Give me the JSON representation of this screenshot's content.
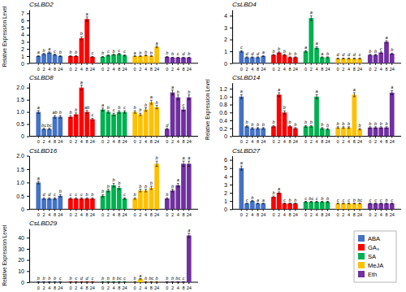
{
  "chart_data": [
    {
      "type": "bar",
      "title": "CsLBD2",
      "ylabel": "Relative Expression Level",
      "legend": "lower right",
      "categories": [
        "0",
        "2",
        "4",
        "8",
        "24"
      ],
      "ylim": [
        0,
        7.5
      ],
      "yticks": [
        0,
        1,
        2,
        3,
        4,
        5,
        6,
        7
      ],
      "series": [
        {
          "name": "ABA",
          "color": "#4472C4",
          "values": [
            1.0,
            1.3,
            1.5,
            1.2,
            1.0
          ],
          "errors": [
            0.06,
            0.08,
            0.1,
            0.08,
            0.06
          ],
          "letters": [
            "a",
            "b",
            "a",
            "c",
            "b"
          ]
        },
        {
          "name": "GA₃",
          "color": "#FF0000",
          "values": [
            1.0,
            1.0,
            3.5,
            6.2,
            0.9
          ],
          "errors": [
            0.06,
            0.06,
            0.2,
            0.3,
            0.06
          ],
          "letters": [
            "b",
            "b",
            "b",
            "a",
            "c"
          ]
        },
        {
          "name": "SA",
          "color": "#00B050",
          "values": [
            0.9,
            1.1,
            1.2,
            1.3,
            1.1
          ],
          "errors": [
            0.05,
            0.07,
            0.08,
            0.09,
            0.07
          ],
          "letters": [
            "b",
            "c",
            "b",
            "c",
            "c"
          ]
        },
        {
          "name": "MeJA",
          "color": "#FFC000",
          "values": [
            1.0,
            1.0,
            1.1,
            1.0,
            2.3
          ],
          "errors": [
            0.05,
            0.05,
            0.06,
            0.05,
            0.12
          ],
          "letters": [
            "a",
            "b",
            "b",
            "b",
            "a"
          ]
        },
        {
          "name": "Eth",
          "color": "#7030A0",
          "values": [
            0.9,
            0.8,
            0.8,
            0.8,
            0.8
          ],
          "errors": [
            0.05,
            0.04,
            0.04,
            0.04,
            0.04
          ],
          "letters": [
            "b",
            "b",
            "c",
            "d",
            "b"
          ]
        }
      ]
    },
    {
      "type": "bar",
      "title": "CsLBD4",
      "categories": [
        "0",
        "2",
        "4",
        "8",
        "24"
      ],
      "ylim": [
        0,
        4.5
      ],
      "yticks": [
        0,
        1,
        2,
        3,
        4
      ],
      "series": [
        {
          "name": "ABA",
          "color": "#4472C4",
          "values": [
            1.0,
            0.5,
            0.5,
            0.5,
            0.6
          ],
          "errors": [
            0.06,
            0.04,
            0.04,
            0.04,
            0.04
          ],
          "letters": [
            "c",
            "d",
            "d",
            "d",
            "a"
          ]
        },
        {
          "name": "GA₃",
          "color": "#FF0000",
          "values": [
            0.7,
            0.9,
            0.7,
            0.5,
            0.5
          ],
          "errors": [
            0.05,
            0.06,
            0.05,
            0.04,
            0.04
          ],
          "letters": [
            "b",
            "b",
            "b",
            "b",
            "b"
          ]
        },
        {
          "name": "SA",
          "color": "#00B050",
          "values": [
            1.0,
            3.8,
            1.3,
            0.5,
            0.5
          ],
          "errors": [
            0.06,
            0.2,
            0.09,
            0.04,
            0.04
          ],
          "letters": [
            "a",
            "a",
            "a",
            "a",
            "b"
          ]
        },
        {
          "name": "MeJA",
          "color": "#FFC000",
          "values": [
            0.4,
            0.4,
            0.4,
            0.4,
            0.4
          ],
          "errors": [
            0.04,
            0.04,
            0.04,
            0.04,
            0.04
          ],
          "letters": [
            "d",
            "d",
            "d",
            "d",
            "c"
          ]
        },
        {
          "name": "Eth",
          "color": "#7030A0",
          "values": [
            0.7,
            0.7,
            0.9,
            1.8,
            0.8
          ],
          "errors": [
            0.05,
            0.05,
            0.06,
            0.1,
            0.05
          ],
          "letters": [
            "b",
            "b",
            "c",
            "a",
            "b"
          ]
        }
      ]
    },
    {
      "type": "bar",
      "title": "CsLBD8",
      "categories": [
        "0",
        "2",
        "4",
        "8",
        "24"
      ],
      "ylim": [
        0,
        2.2
      ],
      "yticks": [
        0,
        0.5,
        {
          "value": 1.0,
          "label": "1.0"
        },
        1.5,
        {
          "value": 2.0,
          "label": "2.0"
        }
      ],
      "series": [
        {
          "name": "ABA",
          "color": "#4472C4",
          "values": [
            1.0,
            0.3,
            0.3,
            0.8,
            0.8
          ],
          "errors": [
            0.06,
            0.03,
            0.03,
            0.05,
            0.05
          ],
          "letters": [
            "a",
            "bc",
            "bc",
            "ab",
            "b"
          ]
        },
        {
          "name": "GA₃",
          "color": "#FF0000",
          "values": [
            0.8,
            0.9,
            2.0,
            1.0,
            0.7
          ],
          "errors": [
            0.05,
            0.06,
            0.1,
            0.06,
            0.04
          ],
          "letters": [
            "b",
            "b",
            "a",
            "ab",
            "c"
          ]
        },
        {
          "name": "SA",
          "color": "#00B050",
          "values": [
            1.1,
            1.0,
            0.9,
            1.0,
            1.0
          ],
          "errors": [
            0.06,
            0.05,
            0.05,
            0.05,
            0.05
          ],
          "letters": [
            "a",
            "b",
            "c",
            "b",
            "c"
          ]
        },
        {
          "name": "MeJA",
          "color": "#FFC000",
          "values": [
            1.0,
            0.9,
            1.1,
            1.4,
            1.2
          ],
          "errors": [
            0.05,
            0.05,
            0.07,
            0.08,
            0.07
          ],
          "letters": [
            "b",
            "b",
            "b",
            "a",
            "b"
          ]
        },
        {
          "name": "Eth",
          "color": "#7030A0",
          "values": [
            0.3,
            1.8,
            1.6,
            1.1,
            1.6
          ],
          "errors": [
            0.03,
            0.1,
            0.1,
            0.07,
            0.1
          ],
          "letters": [
            "d",
            "a",
            "b",
            "c",
            "b"
          ]
        }
      ]
    },
    {
      "type": "bar",
      "title": "CsLBD14",
      "ylabel": "Relative Expression Level",
      "categories": [
        "0",
        "2",
        "4",
        "8",
        "24"
      ],
      "ylim": [
        0,
        1.35
      ],
      "yticks": [
        0,
        0.2,
        0.4,
        0.6,
        0.8,
        {
          "value": 1.0,
          "label": "1.0"
        },
        1.2
      ],
      "series": [
        {
          "name": "ABA",
          "color": "#4472C4",
          "values": [
            1.0,
            0.25,
            0.2,
            0.2,
            0.2
          ],
          "errors": [
            0.05,
            0.02,
            0.02,
            0.02,
            0.02
          ],
          "letters": [
            "a",
            "b",
            "b",
            "b",
            "b"
          ]
        },
        {
          "name": "GA₃",
          "color": "#FF0000",
          "values": [
            0.25,
            1.05,
            0.6,
            0.25,
            0.2
          ],
          "errors": [
            0.02,
            0.05,
            0.04,
            0.02,
            0.02
          ],
          "letters": [
            "b",
            "a",
            "b",
            "b",
            "b"
          ]
        },
        {
          "name": "SA",
          "color": "#00B050",
          "values": [
            0.25,
            0.25,
            1.0,
            0.2,
            0.18
          ],
          "errors": [
            0.02,
            0.02,
            0.05,
            0.02,
            0.02
          ],
          "letters": [
            "b",
            "b",
            "a",
            "b",
            "b"
          ]
        },
        {
          "name": "MeJA",
          "color": "#FFC000",
          "values": [
            0.22,
            0.22,
            0.22,
            1.05,
            0.18
          ],
          "errors": [
            0.02,
            0.02,
            0.02,
            0.05,
            0.02
          ],
          "letters": [
            "b",
            "b",
            "b",
            "a",
            "b"
          ]
        },
        {
          "name": "Eth",
          "color": "#7030A0",
          "values": [
            0.22,
            0.22,
            0.22,
            0.22,
            1.1
          ],
          "errors": [
            0.02,
            0.02,
            0.02,
            0.02,
            0.05
          ],
          "letters": [
            "b",
            "b",
            "b",
            "b",
            "a"
          ]
        }
      ]
    },
    {
      "type": "bar",
      "title": "CsLBD16",
      "categories": [
        "0",
        "2",
        "4",
        "8",
        "24"
      ],
      "ylim": [
        0,
        2.0
      ],
      "yticks": [
        0,
        0.5,
        {
          "value": 1.0,
          "label": "1.0"
        },
        1.5,
        {
          "value": 2.0,
          "label": "2.0"
        }
      ],
      "series": [
        {
          "name": "ABA",
          "color": "#4472C4",
          "values": [
            1.0,
            0.4,
            0.4,
            0.4,
            0.5
          ],
          "errors": [
            0.05,
            0.03,
            0.03,
            0.03,
            0.04
          ],
          "letters": [
            "a",
            "d",
            "d",
            "c",
            "b"
          ]
        },
        {
          "name": "GA₃",
          "color": "#FF0000",
          "values": [
            0.4,
            0.4,
            0.4,
            0.4,
            0.4
          ],
          "errors": [
            0.03,
            0.03,
            0.03,
            0.03,
            0.03
          ],
          "letters": [
            "c",
            "c",
            "c",
            "b",
            "b"
          ]
        },
        {
          "name": "SA",
          "color": "#00B050",
          "values": [
            0.5,
            0.7,
            0.9,
            0.8,
            0.4
          ],
          "errors": [
            0.04,
            0.05,
            0.07,
            0.06,
            0.03
          ],
          "letters": [
            "b",
            "b",
            "b",
            "b",
            "c"
          ]
        },
        {
          "name": "MeJA",
          "color": "#FFC000",
          "values": [
            0.4,
            0.7,
            0.7,
            0.8,
            1.7
          ],
          "errors": [
            0.03,
            0.05,
            0.05,
            0.06,
            0.1
          ],
          "letters": [
            "b",
            "b",
            "b",
            "b",
            "b"
          ]
        },
        {
          "name": "Eth",
          "color": "#7030A0",
          "values": [
            0.4,
            0.7,
            0.9,
            1.7,
            1.7
          ],
          "errors": [
            0.03,
            0.05,
            0.07,
            0.1,
            0.1
          ],
          "letters": [
            "b",
            "b",
            "a",
            "a",
            "a"
          ]
        }
      ]
    },
    {
      "type": "bar",
      "title": "CsLBD27",
      "categories": [
        "0",
        "2",
        "4",
        "8",
        "24"
      ],
      "ylim": [
        0,
        6.5
      ],
      "yticks": [
        0,
        1,
        2,
        3,
        4,
        5,
        6
      ],
      "series": [
        {
          "name": "ABA",
          "color": "#4472C4",
          "values": [
            5.0,
            0.7,
            1.0,
            0.7,
            0.7
          ],
          "errors": [
            0.25,
            0.05,
            0.06,
            0.05,
            0.05
          ],
          "letters": [
            "a",
            "c",
            "b",
            "a",
            "a"
          ]
        },
        {
          "name": "GA₃",
          "color": "#FF0000",
          "values": [
            1.5,
            2.0,
            0.7,
            0.7,
            0.7
          ],
          "errors": [
            0.1,
            0.12,
            0.05,
            0.05,
            0.05
          ],
          "letters": [
            "b",
            "a",
            "c",
            "b",
            "b"
          ]
        },
        {
          "name": "SA",
          "color": "#00B050",
          "values": [
            0.9,
            0.9,
            0.9,
            0.9,
            0.9
          ],
          "errors": [
            0.06,
            0.06,
            0.06,
            0.06,
            0.06
          ],
          "letters": [
            "c",
            "bc",
            "c",
            "b",
            "b"
          ]
        },
        {
          "name": "MeJA",
          "color": "#FFC000",
          "values": [
            0.7,
            0.7,
            0.7,
            0.7,
            0.7
          ],
          "errors": [
            0.05,
            0.05,
            0.05,
            0.05,
            0.05
          ],
          "letters": [
            "c",
            "c",
            "c",
            "b",
            "bc"
          ]
        },
        {
          "name": "Eth",
          "color": "#7030A0",
          "values": [
            0.7,
            0.7,
            0.7,
            0.7,
            0.7
          ],
          "errors": [
            0.05,
            0.05,
            0.05,
            0.05,
            0.05
          ],
          "letters": [
            "c",
            "c",
            "c",
            "b",
            "c"
          ]
        }
      ]
    },
    {
      "type": "bar",
      "title": "CsLBD29",
      "ylabel": "Relative Expression Level",
      "categories": [
        "0",
        "2",
        "4",
        "8",
        "24"
      ],
      "ylim": [
        0,
        48
      ],
      "yticks": [
        0,
        10,
        20,
        30,
        40
      ],
      "series": [
        {
          "name": "ABA",
          "color": "#4472C4",
          "values": [
            0.4,
            0.4,
            0.4,
            0.4,
            0.4
          ],
          "errors": [
            0.03,
            0.03,
            0.03,
            0.03,
            0.03
          ],
          "letters": [
            "b",
            "b",
            "b",
            "b",
            "c"
          ]
        },
        {
          "name": "GA₃",
          "color": "#FF0000",
          "values": [
            0.4,
            0.4,
            0.4,
            0.4,
            0.4
          ],
          "errors": [
            0.03,
            0.03,
            0.03,
            0.03,
            0.03
          ],
          "letters": [
            "b",
            "c",
            "d",
            "d",
            "c"
          ]
        },
        {
          "name": "SA",
          "color": "#00B050",
          "values": [
            0.4,
            0.4,
            0.4,
            0.4,
            0.4
          ],
          "errors": [
            0.03,
            0.03,
            0.03,
            0.03,
            0.03
          ],
          "letters": [
            "b",
            "b",
            "b",
            "bc",
            "c"
          ]
        },
        {
          "name": "MeJA",
          "color": "#FFC000",
          "values": [
            0.4,
            3.0,
            0.4,
            0.4,
            0.4
          ],
          "errors": [
            0.03,
            0.18,
            0.03,
            0.03,
            0.03
          ],
          "letters": [
            "b",
            "a",
            "b",
            "bc",
            "b"
          ]
        },
        {
          "name": "Eth",
          "color": "#7030A0",
          "values": [
            0.4,
            0.4,
            0.4,
            0.4,
            42.0
          ],
          "errors": [
            0.03,
            0.03,
            0.03,
            0.03,
            2.0
          ],
          "letters": [
            "b",
            "b",
            "bc",
            "c",
            "a"
          ]
        }
      ]
    }
  ]
}
